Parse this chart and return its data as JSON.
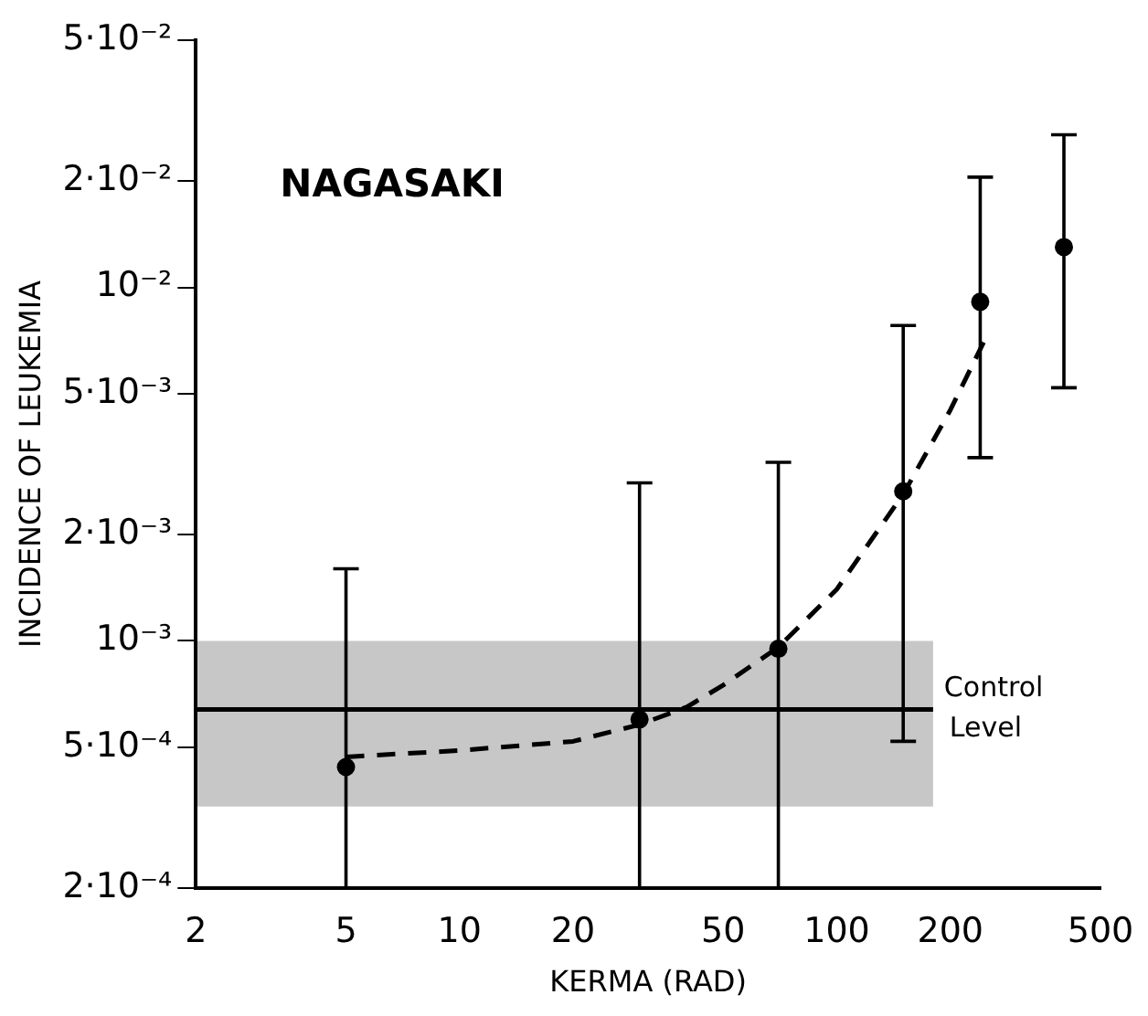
{
  "chart_data": {
    "type": "scatter",
    "title": "NAGASAKI",
    "xlabel": "KERMA (RAD)",
    "ylabel": "INCIDENCE OF LEUKEMIA",
    "log": "xy",
    "grid": false,
    "legend": false,
    "xlim": [
      2,
      500
    ],
    "xticks": [
      2,
      5,
      10,
      20,
      50,
      100,
      200,
      500
    ],
    "ylim": [
      0.0002,
      0.05
    ],
    "yticks": [
      {
        "value": 0.0002,
        "label": "2·10⁻⁴"
      },
      {
        "value": 0.0005,
        "label": "5·10⁻⁴"
      },
      {
        "value": 0.001,
        "label": "10⁻³"
      },
      {
        "value": 0.002,
        "label": "2·10⁻³"
      },
      {
        "value": 0.005,
        "label": "5·10⁻³"
      },
      {
        "value": 0.01,
        "label": "10⁻²"
      },
      {
        "value": 0.02,
        "label": "2·10⁻²"
      },
      {
        "value": 0.05,
        "label": "5·10⁻²"
      }
    ],
    "series": [
      {
        "type": "line",
        "color": "#000000",
        "marker": "none",
        "x": [
          2,
          180
        ],
        "values": [
          0.00064,
          0.00064
        ],
        "lower": [
          0.00034,
          0.00034
        ],
        "upper": [
          0.001,
          0.001
        ]
      },
      {
        "type": "scatter",
        "color": "#000000",
        "marker": "circle",
        "x": [
          5,
          30,
          70,
          150,
          240,
          400
        ],
        "values": [
          0.00044,
          0.0006,
          0.00095,
          0.00265,
          0.0091,
          0.013
        ],
        "errors": [
          [
            0.0002,
            0.0016
          ],
          [
            0.0002,
            0.0028
          ],
          [
            0.0002,
            0.0032
          ],
          [
            0.00052,
            0.0078
          ],
          [
            0.0033,
            0.0205
          ],
          [
            0.0052,
            0.027
          ]
        ]
      },
      {
        "type": "line",
        "color": "#000000",
        "line_style": "dashed",
        "marker": "none",
        "x": [
          5,
          10,
          20,
          30,
          40,
          50,
          70,
          100,
          150,
          200,
          250
        ],
        "values": [
          0.00047,
          0.00049,
          0.00052,
          0.00058,
          0.00065,
          0.00075,
          0.00096,
          0.0014,
          0.0026,
          0.0045,
          0.0073
        ]
      }
    ],
    "annotations": [
      {
        "text": "Control Level",
        "x": 180,
        "y": 0.00064
      }
    ]
  }
}
